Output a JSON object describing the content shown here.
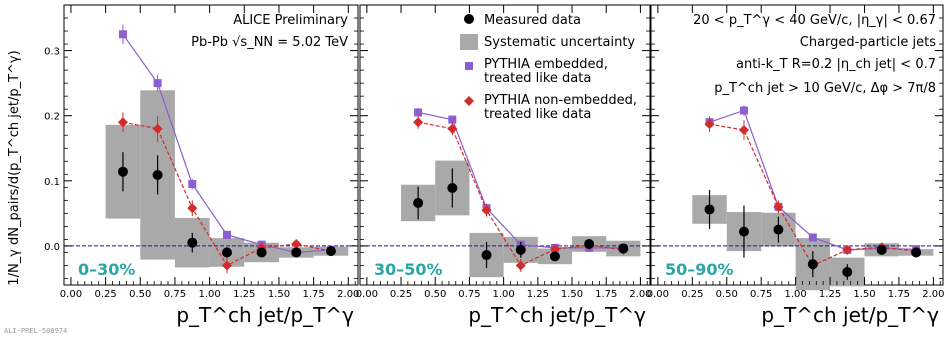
{
  "figure": {
    "note": "ALI-PREL-508974",
    "ylabel": "1/N_γ dN_pairs/d(p_T^ch jet/p_T^γ)",
    "xlabel": "p_T^ch jet/p_T^γ",
    "annotations_left": [
      "ALICE Preliminary",
      "Pb-Pb √s_NN = 5.02 TeV"
    ],
    "annotations_right": [
      "20 < p_T^γ < 40 GeV/c, |η_γ| < 0.67",
      "Charged-particle jets",
      "anti-k_T R=0.2 |η_ch jet| < 0.7",
      "p_T^ch jet > 10 GeV/c, Δφ > 7π/8"
    ],
    "legend": {
      "measured": "Measured data",
      "systematic": "Systematic uncertainty",
      "pythia_emb_1": "PYTHIA embedded,",
      "pythia_emb_2": "treated like data",
      "pythia_non_1": "PYTHIA non-embedded,",
      "pythia_non_2": "treated like data"
    }
  },
  "colors": {
    "measured": "#000000",
    "systematic": "#a9a9a9",
    "pythia_embedded": "#8a5fd0",
    "pythia_non_embedded": "#d62b2b",
    "centrality_label": "#2aa6a6",
    "zero_line": "#1a1a8c"
  },
  "chart_data": [
    {
      "type": "scatter",
      "centrality": "0–30%",
      "xlim": [
        -0.05,
        2.07
      ],
      "ylim": [
        -0.06,
        0.37
      ],
      "xticks": [
        "0.00",
        "0.25",
        "0.50",
        "0.75",
        "1.00",
        "1.25",
        "1.50",
        "1.75",
        "2.00"
      ],
      "yticks": [
        "0.0",
        "0.1",
        "0.2",
        "0.3"
      ],
      "x": [
        0.375,
        0.625,
        0.875,
        1.125,
        1.375,
        1.625,
        1.875
      ],
      "series": [
        {
          "name": "Measured data",
          "values": [
            0.114,
            0.109,
            0.005,
            -0.01,
            -0.01,
            -0.01,
            -0.008
          ],
          "stat_err": [
            0.03,
            0.03,
            0.015,
            0.008,
            0.006,
            0.005,
            0.005
          ]
        },
        {
          "name": "Systematic uncertainty",
          "values": [
            0.114,
            0.109,
            0.005,
            -0.01,
            -0.01,
            -0.01,
            -0.008
          ],
          "sys_err": [
            0.072,
            0.13,
            0.038,
            0.022,
            0.015,
            0.008,
            0.007
          ]
        },
        {
          "name": "PYTHIA embedded, treated like data",
          "values": [
            0.325,
            0.25,
            0.095,
            0.017,
            0.002,
            -0.01,
            -0.006
          ],
          "err": [
            0.015,
            0.013,
            0.008,
            0.004,
            0.002,
            0.002,
            0.002
          ]
        },
        {
          "name": "PYTHIA non-embedded, treated like data",
          "values": [
            0.19,
            0.18,
            0.058,
            -0.03,
            -0.003,
            0.003,
            -0.008
          ],
          "err": [
            0.015,
            0.02,
            0.012,
            0.012,
            0.005,
            0.004,
            0.004
          ]
        }
      ]
    },
    {
      "type": "scatter",
      "centrality": "30–50%",
      "xlim": [
        -0.05,
        2.07
      ],
      "ylim": [
        -0.06,
        0.37
      ],
      "xticks": [
        "0.00",
        "0.25",
        "0.50",
        "0.75",
        "1.00",
        "1.25",
        "1.50",
        "1.75",
        "2.00"
      ],
      "yticks": [],
      "x": [
        0.375,
        0.625,
        0.875,
        1.125,
        1.375,
        1.625,
        1.875
      ],
      "series": [
        {
          "name": "Measured data",
          "values": [
            0.066,
            0.089,
            -0.014,
            -0.006,
            -0.016,
            0.003,
            -0.004
          ],
          "stat_err": [
            0.025,
            0.03,
            0.02,
            0.012,
            0.006,
            0.005,
            0.005
          ]
        },
        {
          "name": "Systematic uncertainty",
          "values": [
            0.066,
            0.089,
            -0.014,
            -0.006,
            -0.016,
            0.003,
            -0.004
          ],
          "sys_err": [
            0.028,
            0.042,
            0.034,
            0.02,
            0.012,
            0.012,
            0.012
          ]
        },
        {
          "name": "PYTHIA embedded, treated like data",
          "values": [
            0.205,
            0.194,
            0.058,
            0.002,
            -0.003,
            -0.003,
            -0.003
          ],
          "err": [
            0.007,
            0.006,
            0.004,
            0.002,
            0.002,
            0.002,
            0.002
          ]
        },
        {
          "name": "PYTHIA non-embedded, treated like data",
          "values": [
            0.19,
            0.18,
            0.055,
            -0.03,
            -0.005,
            0.001,
            -0.006
          ],
          "err": [
            0.01,
            0.01,
            0.01,
            0.01,
            0.003,
            0.003,
            0.003
          ]
        }
      ]
    },
    {
      "type": "scatter",
      "centrality": "50–90%",
      "xlim": [
        -0.05,
        2.07
      ],
      "ylim": [
        -0.06,
        0.37
      ],
      "xticks": [
        "0.00",
        "0.25",
        "0.50",
        "0.75",
        "1.00",
        "1.25",
        "1.50",
        "1.75",
        "2.00"
      ],
      "yticks": [],
      "x": [
        0.375,
        0.625,
        0.875,
        1.125,
        1.375,
        1.625,
        1.875
      ],
      "series": [
        {
          "name": "Measured data",
          "values": [
            0.056,
            0.022,
            0.025,
            -0.028,
            -0.04,
            -0.006,
            -0.01
          ],
          "stat_err": [
            0.03,
            0.04,
            0.02,
            0.02,
            0.012,
            0.006,
            0.005
          ]
        },
        {
          "name": "Systematic uncertainty",
          "values": [
            0.056,
            0.022,
            0.025,
            -0.028,
            -0.04,
            -0.006,
            -0.01
          ],
          "sys_err": [
            0.022,
            0.03,
            0.026,
            0.04,
            0.022,
            0.01,
            0.005
          ]
        },
        {
          "name": "PYTHIA embedded, treated like data",
          "values": [
            0.19,
            0.208,
            0.06,
            0.013,
            -0.006,
            -0.004,
            -0.005
          ],
          "err": [
            0.008,
            0.008,
            0.005,
            0.003,
            0.002,
            0.002,
            0.002
          ]
        },
        {
          "name": "PYTHIA non-embedded, treated like data",
          "values": [
            0.187,
            0.178,
            0.06,
            -0.03,
            -0.006,
            -0.002,
            -0.008
          ],
          "err": [
            0.012,
            0.015,
            0.01,
            0.012,
            0.004,
            0.003,
            0.003
          ]
        }
      ]
    }
  ]
}
